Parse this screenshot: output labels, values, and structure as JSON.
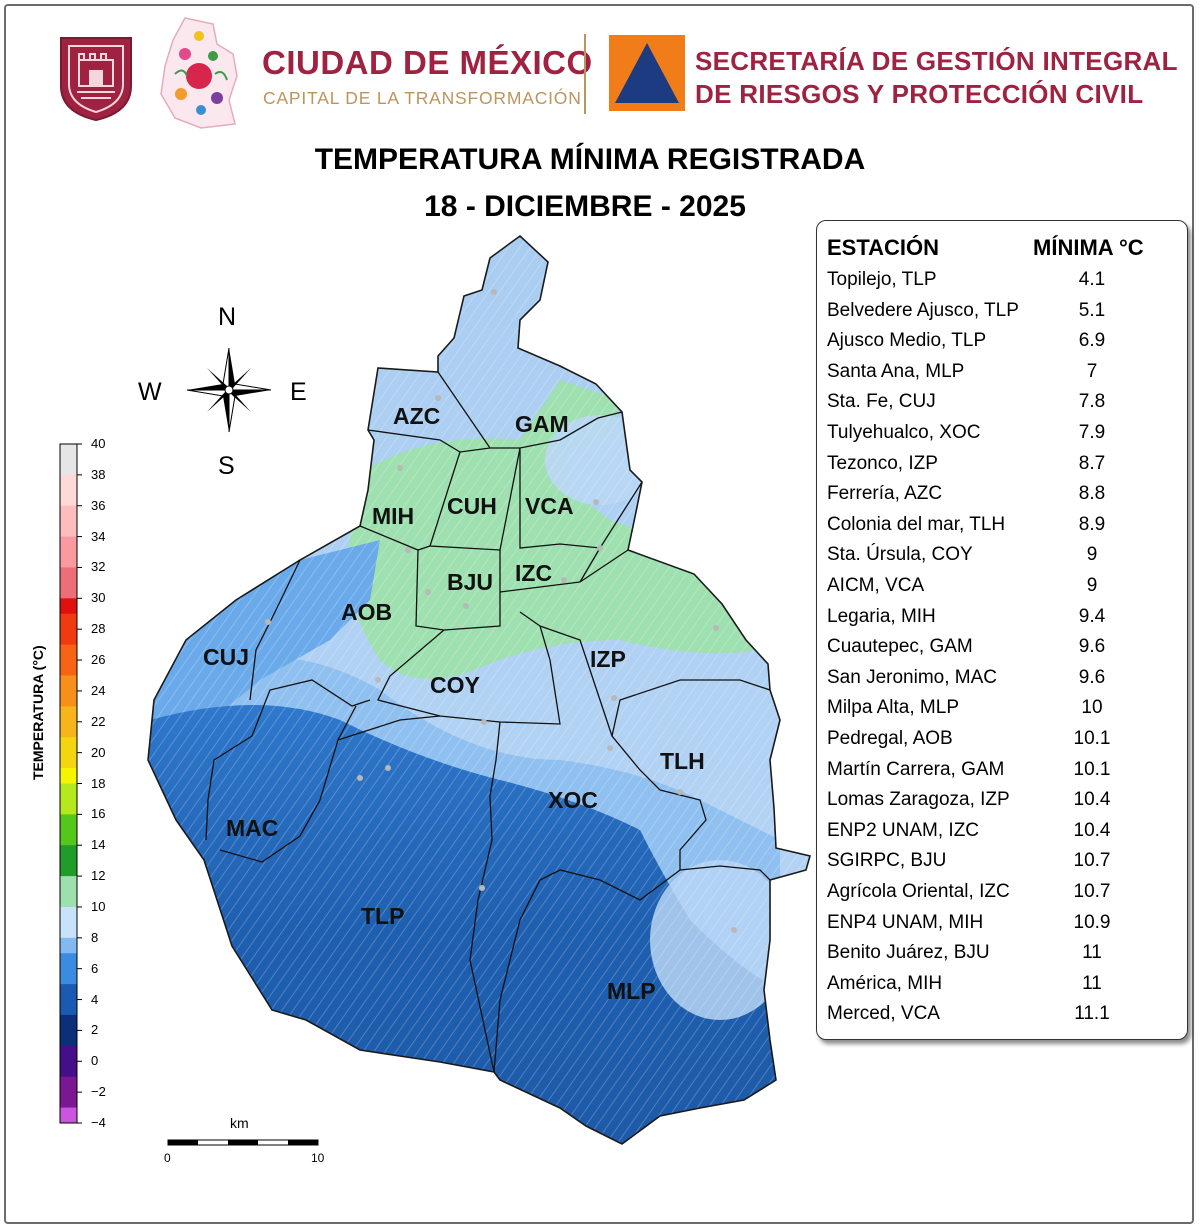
{
  "header": {
    "city_title": "CIUDAD DE MÉXICO",
    "city_subtitle": "CAPITAL DE LA TRANSFORMACIÓN",
    "secretaria_line1": "SECRETARÍA DE GESTIÓN INTEGRAL",
    "secretaria_line2": "DE RIESGOS Y PROTECCIÓN CIVIL",
    "shield_icon": "cdmx-shield-icon",
    "glyph_icon": "cdmx-glyph-icon",
    "pc_icon": "proteccion-civil-triangle-icon",
    "brand_color": "#9f2241",
    "gold_color": "#bc955c"
  },
  "map": {
    "title_line1": "TEMPERATURA MÍNIMA REGISTRADA",
    "title_line2": "18 - DICIEMBRE - 2025",
    "compass": {
      "n": "N",
      "s": "S",
      "e": "E",
      "w": "W",
      "icon": "compass-rose-icon"
    },
    "municipalities": [
      {
        "code": "AZC",
        "band": "8-10"
      },
      {
        "code": "GAM",
        "band": "10-12"
      },
      {
        "code": "MIH",
        "band": "8-12"
      },
      {
        "code": "CUH",
        "band": "10-12"
      },
      {
        "code": "VCA",
        "band": "10-12"
      },
      {
        "code": "BJU",
        "band": "10-12"
      },
      {
        "code": "IZC",
        "band": "10-12"
      },
      {
        "code": "AOB",
        "band": "8-12"
      },
      {
        "code": "CUJ",
        "band": "6-8"
      },
      {
        "code": "IZP",
        "band": "8-10"
      },
      {
        "code": "COY",
        "band": "8-12"
      },
      {
        "code": "TLH",
        "band": "8-10"
      },
      {
        "code": "MAC",
        "band": "4-6"
      },
      {
        "code": "XOC",
        "band": "6-10"
      },
      {
        "code": "TLP",
        "band": "4-6"
      },
      {
        "code": "MLP",
        "band": "4-8"
      }
    ],
    "scale": {
      "unit": "km",
      "start": "0",
      "end": "10"
    }
  },
  "colorbar": {
    "title": "TEMPERATURA (°C)",
    "ticks": [
      "40",
      "38",
      "36",
      "34",
      "32",
      "30",
      "28",
      "26",
      "24",
      "22",
      "20",
      "18",
      "16",
      "14",
      "12",
      "10",
      "8",
      "6",
      "4",
      "2",
      "0",
      "−2",
      "−4"
    ],
    "colors": [
      "#e6e6e6",
      "#ffd8d8",
      "#ffbcbc",
      "#f89aa0",
      "#ee6e77",
      "#e01010",
      "#f03a10",
      "#f76415",
      "#f7901a",
      "#f7b41b",
      "#f5d510",
      "#f5f500",
      "#b5e81d",
      "#55c61a",
      "#1f9c2a",
      "#9ddfad",
      "#c8e2fb",
      "#82b9ef",
      "#3b8be1",
      "#1a5ab0",
      "#0c2f7a",
      "#43108a",
      "#7b1790",
      "#cc55e0"
    ]
  },
  "table": {
    "col1": "ESTACIÓN",
    "col2": "MÍNIMA °C",
    "rows": [
      {
        "station": "Topilejo, TLP",
        "value": "4.1"
      },
      {
        "station": "Belvedere Ajusco, TLP",
        "value": "5.1"
      },
      {
        "station": "Ajusco Medio, TLP",
        "value": "6.9"
      },
      {
        "station": "Santa Ana, MLP",
        "value": "7"
      },
      {
        "station": "Sta. Fe, CUJ",
        "value": "7.8"
      },
      {
        "station": "Tulyehualco, XOC",
        "value": "7.9"
      },
      {
        "station": "Tezonco, IZP",
        "value": "8.7"
      },
      {
        "station": "Ferrería, AZC",
        "value": "8.8"
      },
      {
        "station": "Colonia del mar, TLH",
        "value": "8.9"
      },
      {
        "station": "Sta. Úrsula, COY",
        "value": "9"
      },
      {
        "station": "AICM, VCA",
        "value": "9"
      },
      {
        "station": "Legaria, MIH",
        "value": "9.4"
      },
      {
        "station": "Cuautepec, GAM",
        "value": "9.6"
      },
      {
        "station": "San Jeronimo, MAC",
        "value": "9.6"
      },
      {
        "station": "Milpa Alta, MLP",
        "value": "10"
      },
      {
        "station": "Pedregal, AOB",
        "value": "10.1"
      },
      {
        "station": "Martín Carrera, GAM",
        "value": "10.1"
      },
      {
        "station": "Lomas Zaragoza, IZP",
        "value": "10.4"
      },
      {
        "station": "ENP2 UNAM,  IZC",
        "value": "10.4"
      },
      {
        "station": "SGIRPC, BJU",
        "value": "10.7"
      },
      {
        "station": "Agrícola Oriental, IZC",
        "value": "10.7"
      },
      {
        "station": "ENP4 UNAM,  MIH",
        "value": "10.9"
      },
      {
        "station": "Benito Juárez, BJU",
        "value": "11"
      },
      {
        "station": "América, MIH",
        "value": "11"
      },
      {
        "station": "Merced, VCA",
        "value": "11.1"
      }
    ]
  }
}
